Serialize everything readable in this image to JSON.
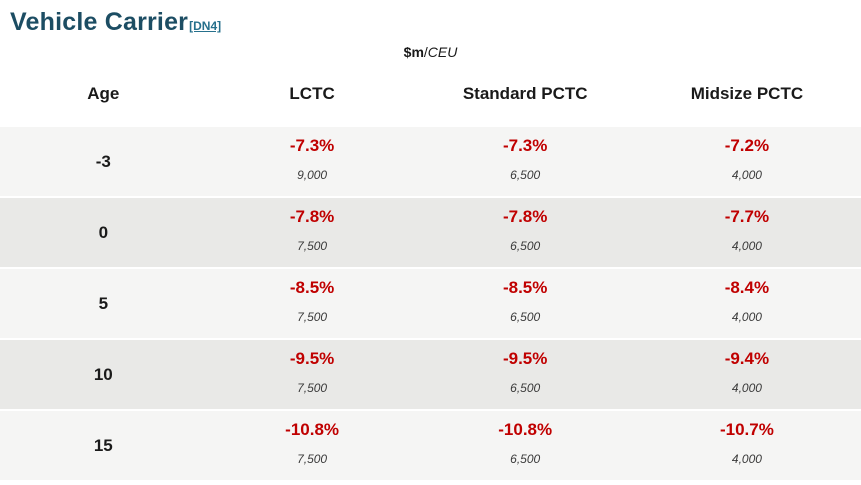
{
  "title": "Vehicle Carrier",
  "footnote_ref": "[DN4]",
  "unit_label": {
    "prefix": "$m",
    "slash": "/",
    "unit": "CEU"
  },
  "colors": {
    "title_text": "#1c4d63",
    "footnote_link": "#26708c",
    "negative_pct": "#c00000",
    "row_stripe_light": "#f5f5f4",
    "row_stripe_dark": "#e9e9e7"
  },
  "table": {
    "columns": [
      "Age",
      "LCTC",
      "Standard PCTC",
      "Midsize PCTC"
    ],
    "rows": [
      {
        "age": "-3",
        "cells": [
          {
            "pct": "-7.3%",
            "value": "9,000"
          },
          {
            "pct": "-7.3%",
            "value": "6,500"
          },
          {
            "pct": "-7.2%",
            "value": "4,000"
          }
        ]
      },
      {
        "age": "0",
        "cells": [
          {
            "pct": "-7.8%",
            "value": "7,500"
          },
          {
            "pct": "-7.8%",
            "value": "6,500"
          },
          {
            "pct": "-7.7%",
            "value": "4,000"
          }
        ]
      },
      {
        "age": "5",
        "cells": [
          {
            "pct": "-8.5%",
            "value": "7,500"
          },
          {
            "pct": "-8.5%",
            "value": "6,500"
          },
          {
            "pct": "-8.4%",
            "value": "4,000"
          }
        ]
      },
      {
        "age": "10",
        "cells": [
          {
            "pct": "-9.5%",
            "value": "7,500"
          },
          {
            "pct": "-9.5%",
            "value": "6,500"
          },
          {
            "pct": "-9.4%",
            "value": "4,000"
          }
        ]
      },
      {
        "age": "15",
        "cells": [
          {
            "pct": "-10.8%",
            "value": "7,500"
          },
          {
            "pct": "-10.8%",
            "value": "6,500"
          },
          {
            "pct": "-10.7%",
            "value": "4,000"
          }
        ]
      }
    ]
  }
}
